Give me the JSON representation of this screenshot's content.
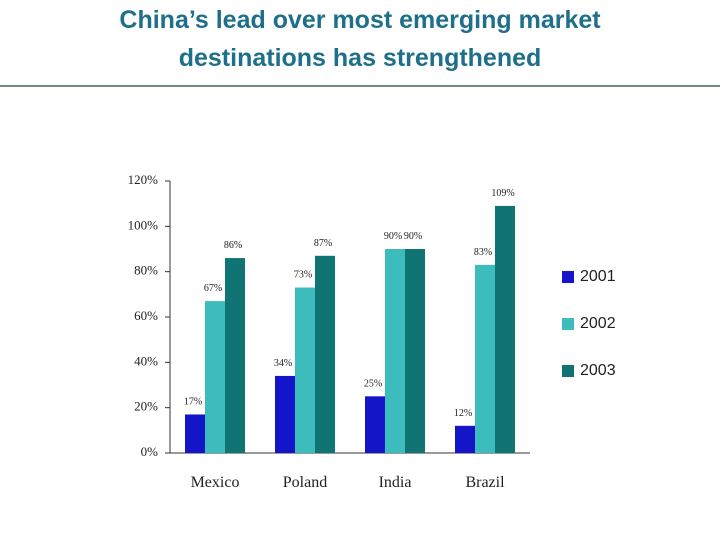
{
  "chart_data": {
    "type": "bar",
    "title": [
      "China’s lead over most emerging market",
      "destinations has strengthened"
    ],
    "categories": [
      "Mexico",
      "Poland",
      "India",
      "Brazil"
    ],
    "series": [
      {
        "name": "2001",
        "color": "#1414c8",
        "values": [
          17,
          34,
          25,
          12
        ],
        "value_labels": [
          "17%",
          "34%",
          "25%",
          "12%"
        ]
      },
      {
        "name": "2002",
        "color": "#3cbcbc",
        "values": [
          67,
          73,
          90,
          83
        ],
        "value_labels": [
          "67%",
          "73%",
          "90%",
          "83%"
        ]
      },
      {
        "name": "2003",
        "color": "#107474",
        "values": [
          86,
          87,
          90,
          109
        ],
        "value_labels": [
          "86%",
          "87%",
          "90%",
          "109%"
        ]
      }
    ],
    "ylim": [
      0,
      120
    ],
    "yticks": [
      {
        "value": 0,
        "label": "0%"
      },
      {
        "value": 20,
        "label": "20%"
      },
      {
        "value": 40,
        "label": "40%"
      },
      {
        "value": 60,
        "label": "60%"
      },
      {
        "value": 80,
        "label": "80%"
      },
      {
        "value": 100,
        "label": "100%"
      },
      {
        "value": 120,
        "label": "120%"
      }
    ],
    "legend": "right"
  }
}
